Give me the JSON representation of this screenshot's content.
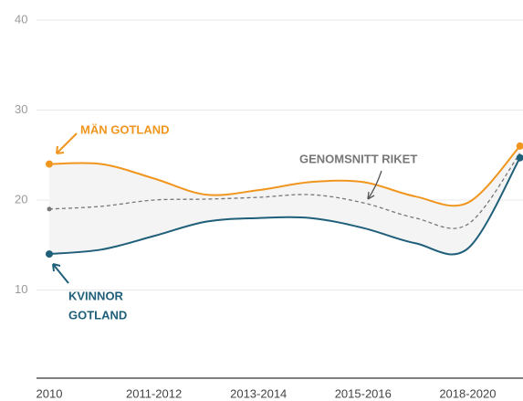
{
  "chart_data": {
    "type": "line",
    "categories": [
      "2010",
      null,
      "2011-2012",
      null,
      "2013-2014",
      null,
      "2015-2016",
      null,
      "2018-2020",
      null
    ],
    "series": [
      {
        "name": "MÄN GOTLAND",
        "color": "#f0961e",
        "values": [
          24,
          24,
          22.4,
          20.6,
          21.1,
          22,
          22,
          20.4,
          19.7,
          26
        ]
      },
      {
        "name": "GENOMSNITT RIKET",
        "color": "#777777",
        "values": [
          19,
          19.3,
          20,
          20.1,
          20.3,
          20.6,
          19.7,
          18,
          17.3,
          25.2
        ]
      },
      {
        "name": "KVINNOR",
        "name2": "GOTLAND",
        "color": "#1f5f7a",
        "values": [
          14,
          14.5,
          16,
          17.6,
          18,
          18,
          16.9,
          15.2,
          14.6,
          24.7
        ]
      }
    ],
    "ylim": [
      0,
      40
    ],
    "yticks": [
      10,
      20,
      30,
      40
    ],
    "grid": true
  }
}
